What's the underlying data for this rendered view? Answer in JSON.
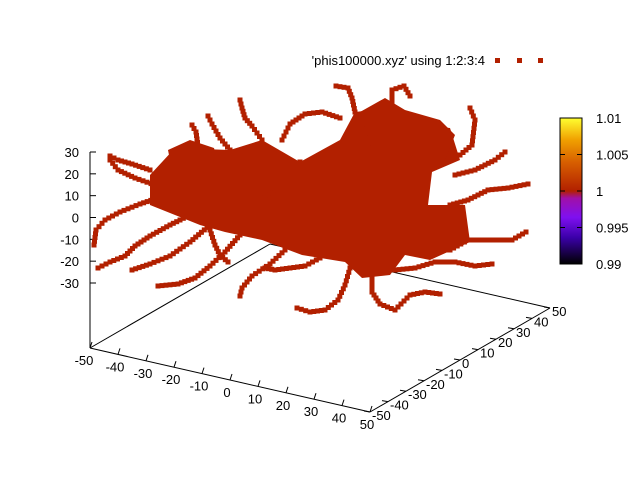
{
  "chart_data": {
    "type": "scatter",
    "title": "",
    "series": [
      {
        "name": "'phis100000.xyz' using 1:2:3:4",
        "color": "#b22000"
      }
    ],
    "x_ticks": [
      "-50",
      "-40",
      "-30",
      "-20",
      "-10",
      "0",
      "10",
      "20",
      "30",
      "40",
      "50"
    ],
    "y_ticks": [
      "50",
      "40",
      "30",
      "20",
      "10",
      "0",
      "-10",
      "-20",
      "-30",
      "-40",
      "-50"
    ],
    "z_ticks": [
      "30",
      "20",
      "10",
      "0",
      "-10",
      "-20",
      "-30"
    ],
    "colorbar_ticks": [
      "1.01",
      "1.005",
      "1",
      "0.995",
      "0.99"
    ],
    "xlim": [
      -50,
      50
    ],
    "ylim": [
      -50,
      50
    ],
    "zlim": [
      -35,
      35
    ],
    "cblim": [
      0.99,
      1.01
    ],
    "legend_position": "top-right",
    "grid": false
  }
}
